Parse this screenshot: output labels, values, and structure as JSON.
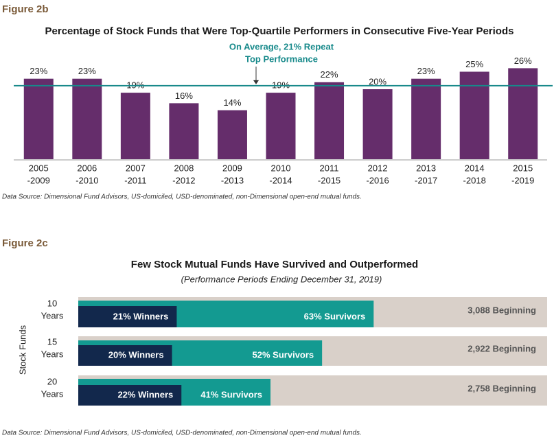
{
  "chart_data": [
    {
      "type": "bar",
      "figure_label": "Figure 2b",
      "title": "Percentage of Stock Funds that Were Top-Quartile Performers in Consecutive Five-Year Periods",
      "categories": [
        [
          "2005",
          "-2009"
        ],
        [
          "2006",
          "-2010"
        ],
        [
          "2007",
          "-2011"
        ],
        [
          "2008",
          "-2012"
        ],
        [
          "2009",
          "-2013"
        ],
        [
          "2010",
          "-2014"
        ],
        [
          "2011",
          "-2015"
        ],
        [
          "2012",
          "-2016"
        ],
        [
          "2013",
          "-2017"
        ],
        [
          "2014",
          "-2018"
        ],
        [
          "2015",
          "-2019"
        ]
      ],
      "values": [
        23,
        23,
        19,
        16,
        14,
        19,
        22,
        20,
        23,
        25,
        26
      ],
      "value_labels": [
        "23%",
        "23%",
        "19%",
        "16%",
        "14%",
        "19%",
        "22%",
        "20%",
        "23%",
        "25%",
        "26%"
      ],
      "color": "#652d6b",
      "ylim": [
        0,
        30
      ],
      "reference_line": {
        "value": 21,
        "label": [
          "On Average, 21% Repeat",
          "Top Performance"
        ],
        "color": "#16898a"
      },
      "source": "Data Source: Dimensional Fund Advisors, US-domiciled, USD-denominated, non-Dimensional open-end mutual funds."
    },
    {
      "type": "overlap-hbar",
      "figure_label": "Figure 2c",
      "title": "Few Stock Mutual Funds Have Survived and Outperformed",
      "subtitle": "(Performance Periods Ending December 31, 2019)",
      "ylabel": "Stock Funds",
      "categories": [
        [
          "10",
          "Years"
        ],
        [
          "15",
          "Years"
        ],
        [
          "20",
          "Years"
        ]
      ],
      "xlim": [
        0,
        100
      ],
      "series": [
        {
          "color": "#d9d0c9",
          "values": [
            100,
            100,
            100
          ]
        },
        {
          "color": "#139a91",
          "values": [
            63,
            52,
            41
          ],
          "value_labels": [
            "63% Survivors",
            "52% Survivors",
            "41% Survivors"
          ]
        },
        {
          "color": "#12284c",
          "values": [
            21,
            20,
            22
          ],
          "value_labels": [
            "21% Winners",
            "20% Winners",
            "22% Winners"
          ]
        }
      ],
      "annotations": [
        "3,088 Beginning",
        "2,922 Beginning",
        "2,758 Beginning"
      ],
      "source": "Data Source: Dimensional Fund Advisors, US-domiciled, USD-denominated, non-Dimensional open-end mutual funds."
    }
  ]
}
